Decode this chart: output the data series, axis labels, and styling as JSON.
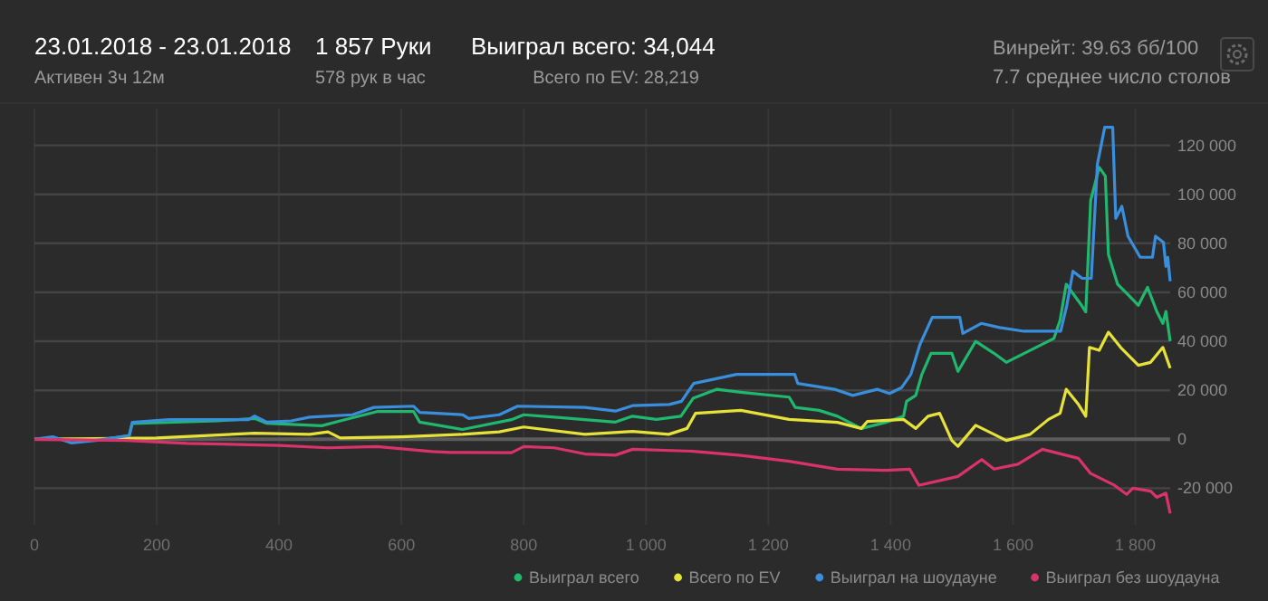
{
  "chart_data": {
    "type": "line",
    "title": "23.01.2018 - 23.01.2018",
    "subtitle": "Активен 3ч 12м",
    "annotations": [
      "1 857 Руки",
      "578 рук в час",
      "Выиграл всего: 34,044",
      "Всего по EV: 28,219",
      "Винрейт: 39.63 бб/100",
      "7.7 среднее число столов"
    ],
    "xlim": [
      0,
      1857
    ],
    "ylim": [
      -35000,
      135000
    ],
    "xticks": [
      0,
      200,
      400,
      600,
      800,
      {
        "value": 1000,
        "label": "1 000"
      },
      {
        "value": 1200,
        "label": "1 200"
      },
      {
        "value": 1400,
        "label": "1 400"
      },
      {
        "value": 1600,
        "label": "1 600"
      },
      {
        "value": 1800,
        "label": "1 800"
      }
    ],
    "yticks": [
      {
        "value": -20000,
        "label": "-20 000"
      },
      0,
      {
        "value": 20000,
        "label": "20 000"
      },
      {
        "value": 40000,
        "label": "40 000"
      },
      {
        "value": 60000,
        "label": "60 000"
      },
      {
        "value": 80000,
        "label": "80 000"
      },
      {
        "value": 100000,
        "label": "100 000"
      },
      {
        "value": 120000,
        "label": "120 000"
      }
    ],
    "grid": true,
    "legend": "bottom",
    "marker": "none",
    "line_style": "solid",
    "ref_lines": [
      {
        "axis": "y",
        "value": 0,
        "color": "#5c5c5c"
      }
    ],
    "series": [
      {
        "name": "Выиграл всего",
        "color": "#1fb86e",
        "x": [
          100,
          155,
          160,
          300,
          360,
          380,
          470,
          500,
          560,
          620,
          630,
          700,
          720,
          780,
          800,
          850,
          900,
          950,
          978,
          1017,
          1057,
          1077,
          1116,
          1155,
          1234,
          1244,
          1283,
          1313,
          1352,
          1392,
          1421,
          1426,
          1441,
          1451,
          1466,
          1500,
          1510,
          1539,
          1569,
          1589,
          1628,
          1667,
          1677,
          1687,
          1712,
          1719,
          1727,
          1741,
          1751,
          1756,
          1771,
          1786,
          1805,
          1820,
          1835,
          1845,
          1850,
          1857
        ],
        "values": [
          -500,
          1500,
          6400,
          7500,
          8500,
          6500,
          5500,
          7500,
          11300,
          11300,
          7000,
          4000,
          5000,
          8000,
          10000,
          9000,
          8000,
          7000,
          9400,
          8100,
          9400,
          16700,
          20400,
          19200,
          17200,
          13000,
          11800,
          9400,
          4400,
          6900,
          9400,
          15500,
          17900,
          26500,
          35100,
          35100,
          27700,
          40000,
          35100,
          31400,
          36300,
          41200,
          48600,
          63300,
          54700,
          52000,
          97500,
          111000,
          107400,
          75500,
          63300,
          59600,
          54700,
          62000,
          52200,
          47300,
          52200,
          40000
        ]
      },
      {
        "name": "Всего по EV",
        "color": "#e6e23a",
        "x": [
          0,
          200,
          360,
          450,
          480,
          500,
          600,
          700,
          760,
          800,
          900,
          978,
          1037,
          1067,
          1081,
          1155,
          1234,
          1313,
          1352,
          1362,
          1421,
          1441,
          1461,
          1480,
          1500,
          1510,
          1539,
          1569,
          1589,
          1628,
          1658,
          1677,
          1687,
          1707,
          1719,
          1725,
          1741,
          1756,
          1776,
          1805,
          1825,
          1845,
          1857
        ],
        "values": [
          0,
          500,
          2500,
          2000,
          3000,
          500,
          1000,
          2000,
          3000,
          5000,
          2000,
          3200,
          2000,
          4400,
          10600,
          11800,
          8100,
          6900,
          4400,
          7300,
          8100,
          4400,
          9400,
          10600,
          -500,
          -2900,
          5700,
          2000,
          -500,
          2000,
          8100,
          10600,
          20400,
          14200,
          9400,
          37500,
          36300,
          43700,
          37500,
          30200,
          31400,
          37500,
          29000
        ]
      },
      {
        "name": "Выиграл на шоудауне",
        "color": "#3a8fdc",
        "x": [
          0,
          30,
          60,
          100,
          155,
          160,
          220,
          350,
          360,
          380,
          420,
          450,
          520,
          555,
          620,
          630,
          700,
          710,
          760,
          790,
          900,
          950,
          978,
          1038,
          1058,
          1078,
          1148,
          1243,
          1248,
          1278,
          1308,
          1338,
          1378,
          1398,
          1418,
          1433,
          1448,
          1468,
          1513,
          1518,
          1548,
          1578,
          1618,
          1678,
          1688,
          1698,
          1713,
          1728,
          1738,
          1750,
          1763,
          1768,
          1778,
          1788,
          1808,
          1828,
          1833,
          1846,
          1850,
          1853,
          1857
        ],
        "values": [
          0,
          1000,
          -1500,
          -500,
          1500,
          6900,
          8000,
          8000,
          9500,
          7000,
          7500,
          9000,
          10000,
          13000,
          13500,
          11000,
          10000,
          8500,
          10000,
          13500,
          13000,
          11500,
          13700,
          14200,
          15500,
          22800,
          26500,
          26500,
          22800,
          21600,
          20400,
          17900,
          20400,
          18700,
          21100,
          26500,
          38800,
          49800,
          49800,
          43200,
          47300,
          45600,
          44100,
          44100,
          54700,
          68600,
          65700,
          65700,
          112300,
          127400,
          127400,
          90200,
          95100,
          82900,
          74300,
          74300,
          82900,
          80400,
          70600,
          74300,
          64500
        ]
      },
      {
        "name": "Выиграл без шоудауна",
        "color": "#d9336b",
        "x": [
          0,
          150,
          250,
          400,
          480,
          560,
          650,
          680,
          780,
          800,
          850,
          900,
          950,
          978,
          1077,
          1155,
          1234,
          1313,
          1392,
          1431,
          1446,
          1510,
          1549,
          1569,
          1608,
          1648,
          1667,
          1707,
          1727,
          1766,
          1786,
          1796,
          1825,
          1835,
          1850,
          1857
        ],
        "values": [
          0,
          -500,
          -1700,
          -2500,
          -3500,
          -3000,
          -5000,
          -5400,
          -5500,
          -3000,
          -3500,
          -6000,
          -6500,
          -4100,
          -4900,
          -6600,
          -9000,
          -12200,
          -12700,
          -12200,
          -18800,
          -15200,
          -8300,
          -12200,
          -10200,
          -4100,
          -5300,
          -7800,
          -14000,
          -18800,
          -22500,
          -20000,
          -21200,
          -23700,
          -22000,
          -30300
        ]
      }
    ]
  }
}
